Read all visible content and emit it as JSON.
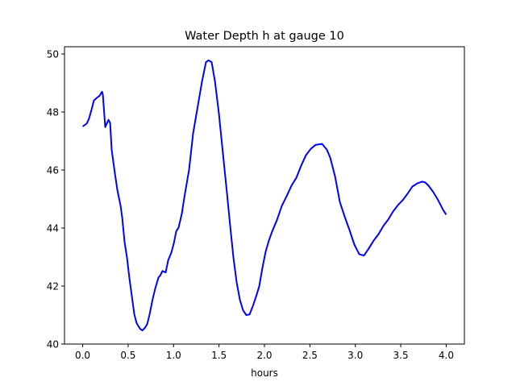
{
  "chart_data": {
    "type": "line",
    "title": "Water Depth h at gauge 10",
    "xlabel": "hours",
    "ylabel": "",
    "xlim": [
      -0.2,
      4.2
    ],
    "ylim": [
      40.0,
      50.25
    ],
    "xticks": [
      0.0,
      0.5,
      1.0,
      1.5,
      2.0,
      2.5,
      3.0,
      3.5,
      4.0
    ],
    "xtick_labels": [
      "0.0",
      "0.5",
      "1.0",
      "1.5",
      "2.0",
      "2.5",
      "3.0",
      "3.5",
      "4.0"
    ],
    "yticks": [
      40,
      42,
      44,
      46,
      48,
      50
    ],
    "ytick_labels": [
      "40",
      "42",
      "44",
      "46",
      "48",
      "50"
    ],
    "grid": false,
    "series": [
      {
        "name": "h",
        "color": "#0000ff",
        "x": [
          0,
          0.044,
          0.071,
          0.098,
          0.124,
          0.16,
          0.186,
          0.213,
          0.222,
          0.248,
          0.284,
          0.302,
          0.319,
          0.355,
          0.381,
          0.417,
          0.435,
          0.461,
          0.488,
          0.514,
          0.532,
          0.568,
          0.594,
          0.63,
          0.656,
          0.683,
          0.71,
          0.736,
          0.772,
          0.798,
          0.834,
          0.851,
          0.878,
          0.913,
          0.94,
          0.976,
          1.002,
          1.029,
          1.055,
          1.091,
          1.117,
          1.171,
          1.215,
          1.268,
          1.313,
          1.357,
          1.384,
          1.419,
          1.455,
          1.499,
          1.543,
          1.588,
          1.623,
          1.659,
          1.694,
          1.73,
          1.765,
          1.8,
          1.836,
          1.871,
          1.907,
          1.942,
          1.978,
          2.013,
          2.049,
          2.084,
          2.137,
          2.191,
          2.244,
          2.297,
          2.35,
          2.404,
          2.457,
          2.51,
          2.563,
          2.634,
          2.687,
          2.723,
          2.776,
          2.829,
          2.882,
          2.936,
          2.989,
          3.042,
          3.095,
          3.149,
          3.202,
          3.255,
          3.308,
          3.361,
          3.415,
          3.468,
          3.521,
          3.574,
          3.628,
          3.681,
          3.734,
          3.77,
          3.805,
          3.858,
          3.911,
          3.965,
          4.0
        ],
        "y": [
          47.5,
          47.6,
          47.78,
          48.09,
          48.4,
          48.5,
          48.56,
          48.7,
          48.59,
          47.48,
          47.73,
          47.62,
          46.7,
          45.87,
          45.32,
          44.76,
          44.35,
          43.52,
          42.96,
          42.27,
          41.86,
          41.02,
          40.72,
          40.53,
          40.47,
          40.55,
          40.69,
          41.02,
          41.58,
          41.91,
          42.3,
          42.35,
          42.52,
          42.47,
          42.88,
          43.16,
          43.46,
          43.88,
          44.02,
          44.49,
          45.04,
          46.01,
          47.26,
          48.23,
          49.06,
          49.72,
          49.78,
          49.72,
          49.06,
          47.95,
          46.57,
          45.18,
          44.07,
          42.96,
          42.13,
          41.52,
          41.16,
          41.0,
          41.02,
          41.3,
          41.63,
          41.99,
          42.63,
          43.19,
          43.57,
          43.88,
          44.27,
          44.76,
          45.1,
          45.46,
          45.73,
          46.15,
          46.51,
          46.73,
          46.87,
          46.9,
          46.7,
          46.43,
          45.79,
          44.9,
          44.4,
          43.93,
          43.43,
          43.1,
          43.05,
          43.3,
          43.57,
          43.79,
          44.07,
          44.29,
          44.57,
          44.79,
          44.96,
          45.18,
          45.43,
          45.54,
          45.6,
          45.57,
          45.46,
          45.24,
          44.96,
          44.63,
          44.46
        ]
      }
    ]
  }
}
